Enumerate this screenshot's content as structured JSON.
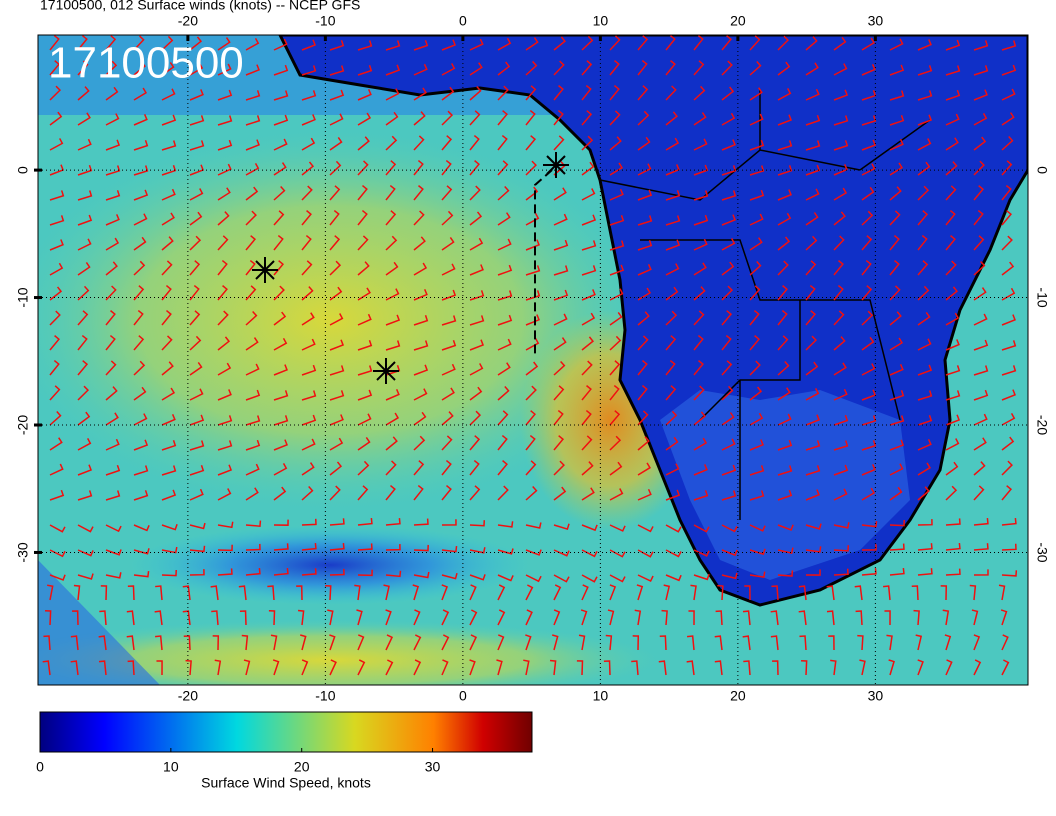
{
  "chart_data": {
    "type": "map",
    "title": "17100500, 012 Surface winds (knots) -- NCEP GFS",
    "overlay_label": "17100500",
    "xlim": [
      -30.9,
      41.1
    ],
    "xticks": [
      -20,
      -10,
      0,
      10,
      20,
      30
    ],
    "ylim": [
      -40.4,
      10.6
    ],
    "yticks": [
      0,
      -10,
      -20,
      -30
    ],
    "grid": true,
    "colorbar": {
      "label": "Surface Wind Speed, knots",
      "lim": [
        0,
        37.6
      ],
      "ticks": [
        0,
        10,
        20,
        30
      ]
    }
  }
}
